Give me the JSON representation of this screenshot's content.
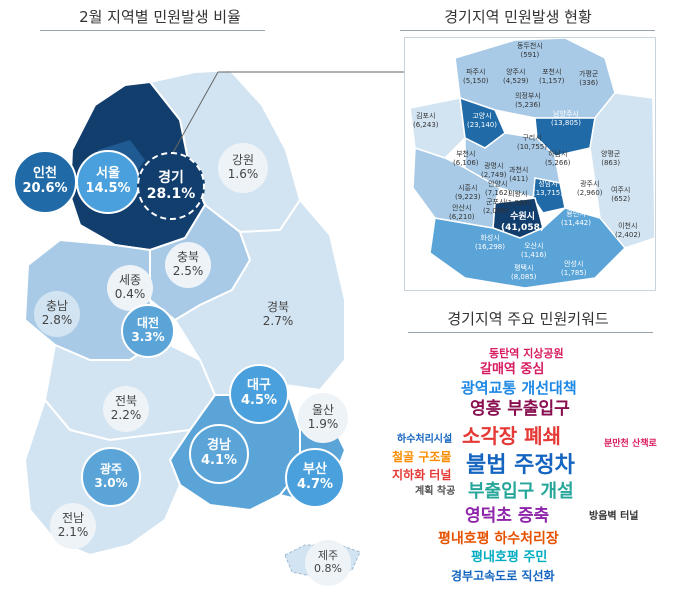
{
  "titles": {
    "left": "2월 지역별 민원발생 비율",
    "right": "경기지역 민원발생 현황",
    "cloud": "경기지역 주요 민원키워드"
  },
  "regions": [
    {
      "id": "seoul",
      "name": "서울",
      "value": "14.5%"
    },
    {
      "id": "incheon",
      "name": "인천",
      "value": "20.6%"
    },
    {
      "id": "gyeonggi",
      "name": "경기",
      "value": "28.1%"
    },
    {
      "id": "gangwon",
      "name": "강원",
      "value": "1.6%"
    },
    {
      "id": "chungbuk",
      "name": "충북",
      "value": "2.5%"
    },
    {
      "id": "sejong",
      "name": "세종",
      "value": "0.4%"
    },
    {
      "id": "chungnam",
      "name": "충남",
      "value": "2.8%"
    },
    {
      "id": "daejeon",
      "name": "대전",
      "value": "3.3%"
    },
    {
      "id": "gyeongbuk",
      "name": "경북",
      "value": "2.7%"
    },
    {
      "id": "jeonbuk",
      "name": "전북",
      "value": "2.2%"
    },
    {
      "id": "daegu",
      "name": "대구",
      "value": "4.5%"
    },
    {
      "id": "ulsan",
      "name": "울산",
      "value": "1.9%"
    },
    {
      "id": "gyeongnam",
      "name": "경남",
      "value": "4.1%"
    },
    {
      "id": "busan",
      "name": "부산",
      "value": "4.7%"
    },
    {
      "id": "gwangju",
      "name": "광주",
      "value": "3.0%"
    },
    {
      "id": "jeonnam",
      "name": "전남",
      "value": "2.1%"
    },
    {
      "id": "jeju",
      "name": "제주",
      "value": "0.8%"
    }
  ],
  "cities": [
    {
      "name": "동두천시",
      "value": "(591)"
    },
    {
      "name": "파주시",
      "value": "(5,150)"
    },
    {
      "name": "양주시",
      "value": "(4,529)"
    },
    {
      "name": "포천시",
      "value": "(1,157)"
    },
    {
      "name": "가평군",
      "value": "(336)"
    },
    {
      "name": "의정부시",
      "value": "(5,236)"
    },
    {
      "name": "김포시",
      "value": "(6,243)"
    },
    {
      "name": "고양시",
      "value": "(23,140)"
    },
    {
      "name": "남양주시",
      "value": "(13,805)"
    },
    {
      "name": "구리시",
      "value": "(10,755)"
    },
    {
      "name": "부천시",
      "value": "(6,106)"
    },
    {
      "name": "광명시",
      "value": "(2,749)"
    },
    {
      "name": "하남시",
      "value": "(5,266)"
    },
    {
      "name": "양평군",
      "value": "(863)"
    },
    {
      "name": "과천시",
      "value": "(411)"
    },
    {
      "name": "성남시",
      "value": "(13,715)"
    },
    {
      "name": "시흥시",
      "value": "(9,223)"
    },
    {
      "name": "안양시",
      "value": "(7,162)"
    },
    {
      "name": "광주시",
      "value": "(2,960)"
    },
    {
      "name": "여주시",
      "value": "(652)"
    },
    {
      "name": "의왕시",
      "value": "(1,069)"
    },
    {
      "name": "군포시",
      "value": "(2,096)"
    },
    {
      "name": "안산시",
      "value": "(6,210)"
    },
    {
      "name": "수원시",
      "value": "(41,058)"
    },
    {
      "name": "용인시",
      "value": "(11,442)"
    },
    {
      "name": "이천시",
      "value": "(2,402)"
    },
    {
      "name": "화성시",
      "value": "(16,298)"
    },
    {
      "name": "오산시",
      "value": "(1,416)"
    },
    {
      "name": "평택시",
      "value": "(8,085)"
    },
    {
      "name": "안성시",
      "value": "(1,785)"
    }
  ],
  "keywords": [
    {
      "text": "동탄역 지상공원",
      "color": "#d81b60"
    },
    {
      "text": "갈매역 중심",
      "color": "#d81b60"
    },
    {
      "text": "광역교통 개선대책",
      "color": "#1e88e5"
    },
    {
      "text": "영흥 부출입구",
      "color": "#880e4f"
    },
    {
      "text": "하수처리시설",
      "color": "#1565c0"
    },
    {
      "text": "소각장 폐쇄",
      "color": "#e53935"
    },
    {
      "text": "분만천 산책로",
      "color": "#d81b60"
    },
    {
      "text": "철골 구조물",
      "color": "#fb8c00"
    },
    {
      "text": "불법 주정차",
      "color": "#1565c0"
    },
    {
      "text": "지하화 터널",
      "color": "#e53935"
    },
    {
      "text": "계획 착공",
      "color": "#555555"
    },
    {
      "text": "부출입구 개설",
      "color": "#26a69a"
    },
    {
      "text": "영덕초 증축",
      "color": "#8e24aa"
    },
    {
      "text": "방음벽 터널",
      "color": "#333333"
    },
    {
      "text": "평내호평 하수처리장",
      "color": "#e65100"
    },
    {
      "text": "평내호평 주민",
      "color": "#00acc1"
    },
    {
      "text": "경부고속도로 직선화",
      "color": "#1565c0"
    }
  ],
  "colors": {
    "darkest": "#123e6e",
    "dark": "#1f6aa7",
    "mid": "#5aa4d8",
    "light": "#a8cae6",
    "lightest": "#d2e4f2",
    "white_bubble": "#eef3f8"
  }
}
